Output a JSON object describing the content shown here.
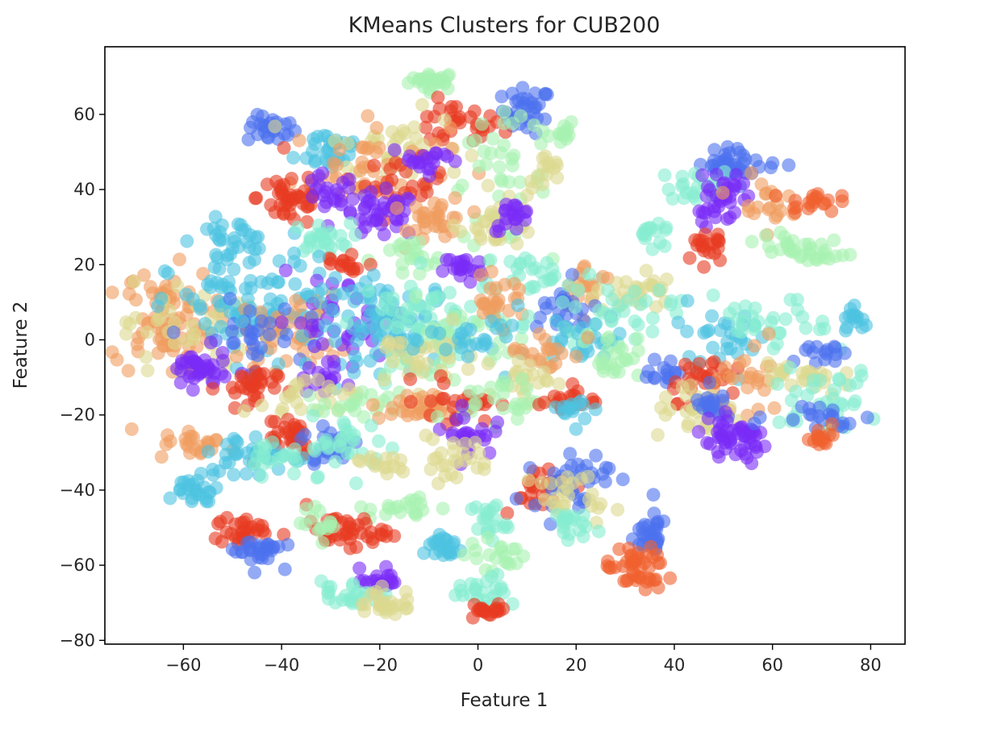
{
  "chart_data": {
    "type": "scatter",
    "title": "KMeans Clusters for CUB200",
    "xlabel": "Feature 1",
    "ylabel": "Feature 2",
    "xlim": [
      -76,
      87
    ],
    "ylim": [
      -81,
      78
    ],
    "xticks": [
      -60,
      -40,
      -20,
      0,
      20,
      40,
      60,
      80
    ],
    "yticks": [
      -80,
      -60,
      -40,
      -20,
      0,
      20,
      40,
      60
    ],
    "xtick_labels": [
      "−60",
      "−40",
      "−20",
      "0",
      "20",
      "40",
      "60",
      "80"
    ],
    "ytick_labels": [
      "−80",
      "−60",
      "−40",
      "−20",
      "0",
      "20",
      "40",
      "60"
    ],
    "grid": false,
    "legend": "none",
    "colormap": "rainbow",
    "point_alpha": 0.6,
    "palette": [
      "#7a2cf6",
      "#4d72ee",
      "#4cc3e1",
      "#86ecd1",
      "#a6f2b0",
      "#dcd890",
      "#f09d5f",
      "#f0602f",
      "#e83a22"
    ],
    "clusters": [
      {
        "x": -9,
        "y": 69,
        "n": 25,
        "spread": [
          2.5,
          1.2
        ],
        "color": 4
      },
      {
        "x": 10,
        "y": 61,
        "n": 35,
        "spread": [
          2.5,
          3
        ],
        "color": 1
      },
      {
        "x": -5,
        "y": 57,
        "n": 30,
        "spread": [
          5,
          3
        ],
        "color": 8
      },
      {
        "x": -42,
        "y": 56,
        "n": 25,
        "spread": [
          2.5,
          1.8
        ],
        "color": 1
      },
      {
        "x": 16,
        "y": 55,
        "n": 15,
        "spread": [
          2,
          2
        ],
        "color": 4
      },
      {
        "x": -30,
        "y": 51,
        "n": 30,
        "spread": [
          3.5,
          3
        ],
        "color": 2
      },
      {
        "x": -17,
        "y": 51,
        "n": 40,
        "spread": [
          7,
          5
        ],
        "color": 5
      },
      {
        "x": -22,
        "y": 46,
        "n": 40,
        "spread": [
          8,
          6
        ],
        "color": 6
      },
      {
        "x": -15,
        "y": 42,
        "n": 25,
        "spread": [
          4,
          3
        ],
        "color": 8
      },
      {
        "x": -10,
        "y": 48,
        "n": 20,
        "spread": [
          4,
          2
        ],
        "color": 0
      },
      {
        "x": 4,
        "y": 42,
        "n": 40,
        "spread": [
          5,
          8
        ],
        "color": 4
      },
      {
        "x": 14,
        "y": 44,
        "n": 15,
        "spread": [
          2,
          3
        ],
        "color": 5
      },
      {
        "x": -38,
        "y": 38,
        "n": 40,
        "spread": [
          3.5,
          4
        ],
        "color": 8
      },
      {
        "x": -31,
        "y": 38,
        "n": 20,
        "spread": [
          3,
          3
        ],
        "color": 0
      },
      {
        "x": -20,
        "y": 33,
        "n": 40,
        "spread": [
          4,
          3
        ],
        "color": 0
      },
      {
        "x": -8,
        "y": 32,
        "n": 30,
        "spread": [
          3,
          3
        ],
        "color": 6
      },
      {
        "x": 4,
        "y": 31,
        "n": 25,
        "spread": [
          4,
          3
        ],
        "color": 5
      },
      {
        "x": 7,
        "y": 33,
        "n": 20,
        "spread": [
          2,
          2
        ],
        "color": 0
      },
      {
        "x": -50,
        "y": 26,
        "n": 35,
        "spread": [
          4,
          3
        ],
        "color": 2
      },
      {
        "x": -32,
        "y": 27,
        "n": 25,
        "spread": [
          3,
          2
        ],
        "color": 3
      },
      {
        "x": -14,
        "y": 21,
        "n": 20,
        "spread": [
          4,
          3
        ],
        "color": 4
      },
      {
        "x": -3,
        "y": 19,
        "n": 20,
        "spread": [
          2,
          2
        ],
        "color": 0
      },
      {
        "x": -27,
        "y": 20,
        "n": 15,
        "spread": [
          3,
          2
        ],
        "color": 8
      },
      {
        "x": 12,
        "y": 18,
        "n": 25,
        "spread": [
          6,
          3
        ],
        "color": 3
      },
      {
        "x": 22,
        "y": 14,
        "n": 20,
        "spread": [
          3,
          3
        ],
        "color": 6
      },
      {
        "x": 32,
        "y": 13,
        "n": 30,
        "spread": [
          4,
          3
        ],
        "color": 5
      },
      {
        "x": -64,
        "y": 5,
        "n": 80,
        "spread": [
          5,
          7
        ],
        "color": 6
      },
      {
        "x": -60,
        "y": 2,
        "n": 40,
        "spread": [
          6,
          7
        ],
        "color": 5
      },
      {
        "x": -45,
        "y": 8,
        "n": 90,
        "spread": [
          9,
          7
        ],
        "color": 2
      },
      {
        "x": -38,
        "y": 2,
        "n": 45,
        "spread": [
          5,
          5
        ],
        "color": 6
      },
      {
        "x": -47,
        "y": 0,
        "n": 30,
        "spread": [
          5,
          5
        ],
        "color": 1
      },
      {
        "x": -28,
        "y": 5,
        "n": 40,
        "spread": [
          7,
          6
        ],
        "color": 0
      },
      {
        "x": -18,
        "y": 4,
        "n": 90,
        "spread": [
          8,
          6
        ],
        "color": 2
      },
      {
        "x": -10,
        "y": 6,
        "n": 50,
        "spread": [
          7,
          6
        ],
        "color": 3
      },
      {
        "x": -5,
        "y": -2,
        "n": 40,
        "spread": [
          7,
          6
        ],
        "color": 4
      },
      {
        "x": -12,
        "y": -5,
        "n": 30,
        "spread": [
          6,
          4
        ],
        "color": 5
      },
      {
        "x": 4,
        "y": 10,
        "n": 25,
        "spread": [
          3,
          3
        ],
        "color": 6
      },
      {
        "x": 0,
        "y": 0,
        "n": 25,
        "spread": [
          5,
          4
        ],
        "color": 2
      },
      {
        "x": -57,
        "y": -8,
        "n": 40,
        "spread": [
          3,
          2.5
        ],
        "color": 0
      },
      {
        "x": 18,
        "y": 7,
        "n": 25,
        "spread": [
          4,
          4
        ],
        "color": 1
      },
      {
        "x": 26,
        "y": 7,
        "n": 40,
        "spread": [
          7,
          4
        ],
        "color": 3
      },
      {
        "x": 22,
        "y": 0,
        "n": 25,
        "spread": [
          5,
          3
        ],
        "color": 2
      },
      {
        "x": 27,
        "y": -4,
        "n": 25,
        "spread": [
          3,
          3
        ],
        "color": 4
      },
      {
        "x": 14,
        "y": -3,
        "n": 20,
        "spread": [
          4,
          3
        ],
        "color": 6
      },
      {
        "x": 10,
        "y": -10,
        "n": 20,
        "spread": [
          3,
          3
        ],
        "color": 5
      },
      {
        "x": -47,
        "y": -13,
        "n": 30,
        "spread": [
          3,
          3
        ],
        "color": 8
      },
      {
        "x": -32,
        "y": -10,
        "n": 15,
        "spread": [
          2,
          2
        ],
        "color": 0
      },
      {
        "x": -36,
        "y": -16,
        "n": 25,
        "spread": [
          6,
          3
        ],
        "color": 5
      },
      {
        "x": -24,
        "y": -18,
        "n": 20,
        "spread": [
          4,
          2
        ],
        "color": 4
      },
      {
        "x": -12,
        "y": -18,
        "n": 35,
        "spread": [
          5,
          2
        ],
        "color": 6
      },
      {
        "x": -4,
        "y": -16,
        "n": 25,
        "spread": [
          4,
          3
        ],
        "color": 8
      },
      {
        "x": 5,
        "y": -16,
        "n": 25,
        "spread": [
          4,
          3
        ],
        "color": 4
      },
      {
        "x": 18,
        "y": -16,
        "n": 20,
        "spread": [
          3,
          2
        ],
        "color": 8
      },
      {
        "x": 21,
        "y": -19,
        "n": 15,
        "spread": [
          2,
          2
        ],
        "color": 2
      },
      {
        "x": -39,
        "y": -25,
        "n": 30,
        "spread": [
          3,
          3
        ],
        "color": 8
      },
      {
        "x": -30,
        "y": -28,
        "n": 25,
        "spread": [
          3,
          3
        ],
        "color": 1
      },
      {
        "x": -26,
        "y": -28,
        "n": 30,
        "spread": [
          4,
          4
        ],
        "color": 3
      },
      {
        "x": -57,
        "y": -28,
        "n": 25,
        "spread": [
          4,
          2
        ],
        "color": 6
      },
      {
        "x": -46,
        "y": -31,
        "n": 35,
        "spread": [
          6,
          3
        ],
        "color": 2
      },
      {
        "x": -40,
        "y": -30,
        "n": 20,
        "spread": [
          4,
          3
        ],
        "color": 3
      },
      {
        "x": -2,
        "y": -25,
        "n": 25,
        "spread": [
          2.5,
          3
        ],
        "color": 0
      },
      {
        "x": -5,
        "y": -32,
        "n": 25,
        "spread": [
          4,
          3
        ],
        "color": 5
      },
      {
        "x": -20,
        "y": -33,
        "n": 15,
        "spread": [
          3,
          2
        ],
        "color": 5
      },
      {
        "x": 12,
        "y": -39,
        "n": 25,
        "spread": [
          4,
          3
        ],
        "color": 8
      },
      {
        "x": 19,
        "y": -37,
        "n": 35,
        "spread": [
          4,
          4
        ],
        "color": 1
      },
      {
        "x": 20,
        "y": -42,
        "n": 25,
        "spread": [
          4,
          3
        ],
        "color": 5
      },
      {
        "x": -58,
        "y": -40,
        "n": 25,
        "spread": [
          2.5,
          2
        ],
        "color": 2
      },
      {
        "x": -14,
        "y": -45,
        "n": 20,
        "spread": [
          4,
          1.5
        ],
        "color": 4
      },
      {
        "x": 2,
        "y": -48,
        "n": 20,
        "spread": [
          2,
          3
        ],
        "color": 3
      },
      {
        "x": -27,
        "y": -51,
        "n": 40,
        "spread": [
          4,
          2
        ],
        "color": 8
      },
      {
        "x": -32,
        "y": -49,
        "n": 15,
        "spread": [
          2,
          2
        ],
        "color": 4
      },
      {
        "x": -48,
        "y": -51,
        "n": 30,
        "spread": [
          3,
          2
        ],
        "color": 8
      },
      {
        "x": -45,
        "y": -56,
        "n": 30,
        "spread": [
          2.5,
          2
        ],
        "color": 1
      },
      {
        "x": 18,
        "y": -49,
        "n": 20,
        "spread": [
          2,
          2
        ],
        "color": 3
      },
      {
        "x": -7,
        "y": -55,
        "n": 25,
        "spread": [
          2,
          2
        ],
        "color": 2
      },
      {
        "x": 4,
        "y": -57,
        "n": 20,
        "spread": [
          3,
          2
        ],
        "color": 4
      },
      {
        "x": 35,
        "y": -52,
        "n": 30,
        "spread": [
          2,
          3
        ],
        "color": 1
      },
      {
        "x": 32,
        "y": -61,
        "n": 45,
        "spread": [
          3,
          3
        ],
        "color": 7
      },
      {
        "x": -20,
        "y": -64,
        "n": 20,
        "spread": [
          2,
          1.5
        ],
        "color": 0
      },
      {
        "x": -26,
        "y": -68,
        "n": 25,
        "spread": [
          3,
          2
        ],
        "color": 3
      },
      {
        "x": -19,
        "y": -70,
        "n": 25,
        "spread": [
          3,
          2
        ],
        "color": 5
      },
      {
        "x": 2,
        "y": -67,
        "n": 25,
        "spread": [
          3,
          2
        ],
        "color": 3
      },
      {
        "x": 2,
        "y": -72,
        "n": 20,
        "spread": [
          2,
          1
        ],
        "color": 8
      },
      {
        "x": 53,
        "y": 47,
        "n": 40,
        "spread": [
          4,
          2
        ],
        "color": 1
      },
      {
        "x": 46,
        "y": 41,
        "n": 25,
        "spread": [
          4,
          2
        ],
        "color": 3
      },
      {
        "x": 50,
        "y": 40,
        "n": 20,
        "spread": [
          3,
          3
        ],
        "color": 0
      },
      {
        "x": 48,
        "y": 34,
        "n": 15,
        "spread": [
          2,
          2
        ],
        "color": 0
      },
      {
        "x": 57,
        "y": 37,
        "n": 20,
        "spread": [
          3,
          3
        ],
        "color": 6
      },
      {
        "x": 68,
        "y": 37,
        "n": 20,
        "spread": [
          2.5,
          1.5
        ],
        "color": 7
      },
      {
        "x": 36,
        "y": 28,
        "n": 15,
        "spread": [
          2,
          2
        ],
        "color": 3
      },
      {
        "x": 46,
        "y": 25,
        "n": 20,
        "spread": [
          2,
          3
        ],
        "color": 8
      },
      {
        "x": 63,
        "y": 25,
        "n": 20,
        "spread": [
          3,
          2
        ],
        "color": 4
      },
      {
        "x": 71,
        "y": 23,
        "n": 15,
        "spread": [
          2,
          2
        ],
        "color": 4
      },
      {
        "x": 77,
        "y": 5,
        "n": 15,
        "spread": [
          1.5,
          2
        ],
        "color": 2
      },
      {
        "x": 50,
        "y": 2,
        "n": 30,
        "spread": [
          5,
          4
        ],
        "color": 2
      },
      {
        "x": 60,
        "y": 3,
        "n": 30,
        "spread": [
          6,
          4
        ],
        "color": 3
      },
      {
        "x": 70,
        "y": -4,
        "n": 15,
        "spread": [
          2,
          2
        ],
        "color": 1
      },
      {
        "x": 38,
        "y": -9,
        "n": 15,
        "spread": [
          2,
          2
        ],
        "color": 1
      },
      {
        "x": 46,
        "y": -10,
        "n": 30,
        "spread": [
          4,
          3
        ],
        "color": 8
      },
      {
        "x": 56,
        "y": -12,
        "n": 30,
        "spread": [
          4,
          5
        ],
        "color": 6
      },
      {
        "x": 45,
        "y": -20,
        "n": 25,
        "spread": [
          5,
          3
        ],
        "color": 5
      },
      {
        "x": 48,
        "y": -18,
        "n": 20,
        "spread": [
          2,
          2
        ],
        "color": 1
      },
      {
        "x": 52,
        "y": -27,
        "n": 50,
        "spread": [
          4,
          3
        ],
        "color": 0
      },
      {
        "x": 66,
        "y": -10,
        "n": 25,
        "spread": [
          4,
          3
        ],
        "color": 5
      },
      {
        "x": 70,
        "y": -16,
        "n": 35,
        "spread": [
          6,
          4
        ],
        "color": 3
      },
      {
        "x": 70,
        "y": -20,
        "n": 20,
        "spread": [
          5,
          2
        ],
        "color": 1
      },
      {
        "x": 70,
        "y": -25,
        "n": 15,
        "spread": [
          2,
          2
        ],
        "color": 7
      }
    ]
  }
}
